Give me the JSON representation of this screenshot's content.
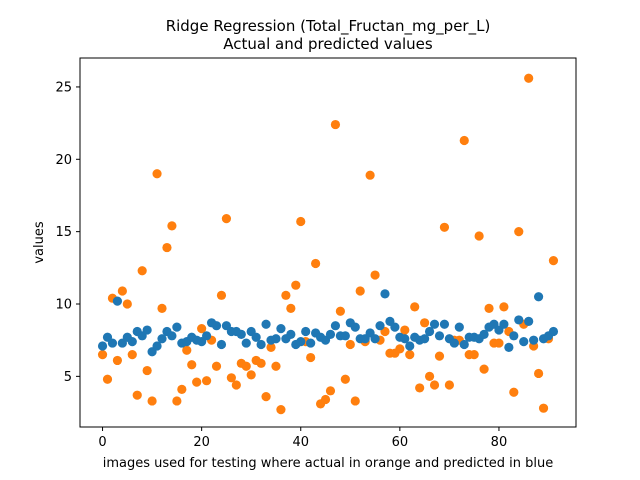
{
  "chart_data": {
    "type": "scatter",
    "title": "Ridge Regression (Total_Fructan_mg_per_L)",
    "subtitle": "Actual and predicted values",
    "xlabel": "images used for testing where actual in orange and predicted in blue",
    "ylabel": "values",
    "xlim": [
      -4.55,
      95.55
    ],
    "ylim": [
      1.5,
      27.0
    ],
    "xticks": [
      0,
      20,
      40,
      60,
      80
    ],
    "yticks": [
      5,
      10,
      15,
      20,
      25
    ],
    "grid": false,
    "series": [
      {
        "color": "#ff7f0e",
        "x": [
          0,
          1,
          2,
          3,
          4,
          5,
          6,
          7,
          8,
          9,
          10,
          11,
          12,
          13,
          14,
          15,
          16,
          17,
          18,
          19,
          20,
          21,
          22,
          23,
          24,
          25,
          26,
          27,
          28,
          29,
          30,
          31,
          32,
          33,
          34,
          35,
          36,
          37,
          38,
          39,
          40,
          41,
          42,
          43,
          44,
          45,
          46,
          47,
          48,
          49,
          50,
          51,
          52,
          53,
          54,
          55,
          56,
          57,
          58,
          59,
          60,
          61,
          62,
          63,
          64,
          65,
          66,
          67,
          68,
          69,
          70,
          71,
          72,
          73,
          74,
          75,
          76,
          77,
          78,
          79,
          80,
          81,
          82,
          83,
          84,
          85,
          86,
          87,
          88,
          89,
          90,
          91
        ],
        "y": [
          6.5,
          4.8,
          10.4,
          6.1,
          10.9,
          10.0,
          6.5,
          3.7,
          12.3,
          5.4,
          3.3,
          19.0,
          9.7,
          13.9,
          15.4,
          3.3,
          4.1,
          6.8,
          5.8,
          4.6,
          8.3,
          4.7,
          7.5,
          5.7,
          10.6,
          15.9,
          4.9,
          4.4,
          5.9,
          5.7,
          5.1,
          6.1,
          5.9,
          3.6,
          7.0,
          5.7,
          2.7,
          10.6,
          9.7,
          11.3,
          15.7,
          7.4,
          6.3,
          12.8,
          3.1,
          3.4,
          4.0,
          22.4,
          9.5,
          4.8,
          7.2,
          3.3,
          10.9,
          7.4,
          18.9,
          12.0,
          7.5,
          8.1,
          6.6,
          6.6,
          6.9,
          8.2,
          6.5,
          9.8,
          4.2,
          8.7,
          5.0,
          4.4,
          6.4,
          15.3,
          4.4,
          7.5,
          7.5,
          21.3,
          6.5,
          6.5,
          14.7,
          5.5,
          9.7,
          7.3,
          7.3,
          9.8,
          8.1,
          3.9,
          15.0,
          8.6,
          25.6,
          7.1,
          5.2,
          2.8,
          7.6,
          13.0
        ]
      },
      {
        "color": "#1f77b4",
        "x": [
          0,
          1,
          2,
          3,
          4,
          5,
          6,
          7,
          8,
          9,
          10,
          11,
          12,
          13,
          14,
          15,
          16,
          17,
          18,
          19,
          20,
          21,
          22,
          23,
          24,
          25,
          26,
          27,
          28,
          29,
          30,
          31,
          32,
          33,
          34,
          35,
          36,
          37,
          38,
          39,
          40,
          41,
          42,
          43,
          44,
          45,
          46,
          47,
          48,
          49,
          50,
          51,
          52,
          53,
          54,
          55,
          56,
          57,
          58,
          59,
          60,
          61,
          62,
          63,
          64,
          65,
          66,
          67,
          68,
          69,
          70,
          71,
          72,
          73,
          74,
          75,
          76,
          77,
          78,
          79,
          80,
          81,
          82,
          83,
          84,
          85,
          86,
          87,
          88,
          89,
          90,
          91
        ],
        "y": [
          7.1,
          7.7,
          7.3,
          10.2,
          7.3,
          7.7,
          7.4,
          8.1,
          7.8,
          8.2,
          6.7,
          7.1,
          7.6,
          8.1,
          7.8,
          8.4,
          7.3,
          7.4,
          7.7,
          7.5,
          7.4,
          7.8,
          8.7,
          8.5,
          7.2,
          8.5,
          8.1,
          8.1,
          7.9,
          7.3,
          8.1,
          7.7,
          7.2,
          8.6,
          7.5,
          7.6,
          8.3,
          7.6,
          7.9,
          7.2,
          7.4,
          8.1,
          7.3,
          8.0,
          7.7,
          7.5,
          7.9,
          8.5,
          7.8,
          7.8,
          8.7,
          8.4,
          7.6,
          7.6,
          8.0,
          7.6,
          8.5,
          10.7,
          8.8,
          8.4,
          7.7,
          7.6,
          7.1,
          7.7,
          7.5,
          7.6,
          8.1,
          8.6,
          7.8,
          8.6,
          7.6,
          7.3,
          8.4,
          7.2,
          7.7,
          7.7,
          7.6,
          7.9,
          8.4,
          8.6,
          8.2,
          8.6,
          7.0,
          7.8,
          8.9,
          7.4,
          8.8,
          7.5,
          10.5,
          7.6,
          7.8,
          8.1
        ]
      }
    ]
  }
}
